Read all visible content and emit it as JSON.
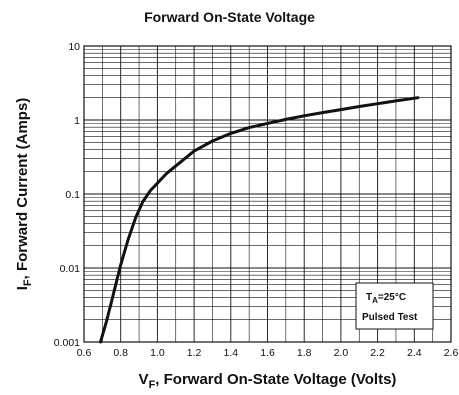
{
  "chart_data": {
    "type": "line",
    "title": "Forward On-State Voltage",
    "xlabel": {
      "main": "V",
      "sub": "F",
      "rest": ", Forward On-State Voltage (Volts)"
    },
    "ylabel": {
      "main": "I",
      "sub": "F",
      "rest": ", Forward Current (Amps)"
    },
    "xlim": [
      0.6,
      2.6
    ],
    "ylim": [
      0.001,
      10
    ],
    "yscale": "log",
    "grid": true,
    "x_ticks": [
      "0.6",
      "0.8",
      "1.0",
      "1.2",
      "1.4",
      "1.6",
      "1.8",
      "2.0",
      "2.2",
      "2.4",
      "2.6"
    ],
    "y_ticks": [
      "0.001",
      "0.01",
      "0.1",
      "1",
      "10"
    ],
    "series": [
      {
        "x": [
          0.69,
          0.72,
          0.75,
          0.78,
          0.8,
          0.84,
          0.88,
          0.92,
          0.96,
          1.0,
          1.05,
          1.1,
          1.2,
          1.3,
          1.4,
          1.5,
          1.6,
          1.7,
          1.8,
          1.9,
          2.0,
          2.1,
          2.2,
          2.3,
          2.42
        ],
        "y": [
          0.001,
          0.0018,
          0.0035,
          0.007,
          0.011,
          0.024,
          0.047,
          0.078,
          0.11,
          0.14,
          0.19,
          0.24,
          0.38,
          0.52,
          0.66,
          0.79,
          0.9,
          1.02,
          1.14,
          1.26,
          1.38,
          1.52,
          1.66,
          1.81,
          2.0
        ]
      }
    ],
    "annotation": {
      "ta_main": "T",
      "ta_sub": "A",
      "ta_rest": "=25°C",
      "note": "Pulsed Test"
    }
  }
}
